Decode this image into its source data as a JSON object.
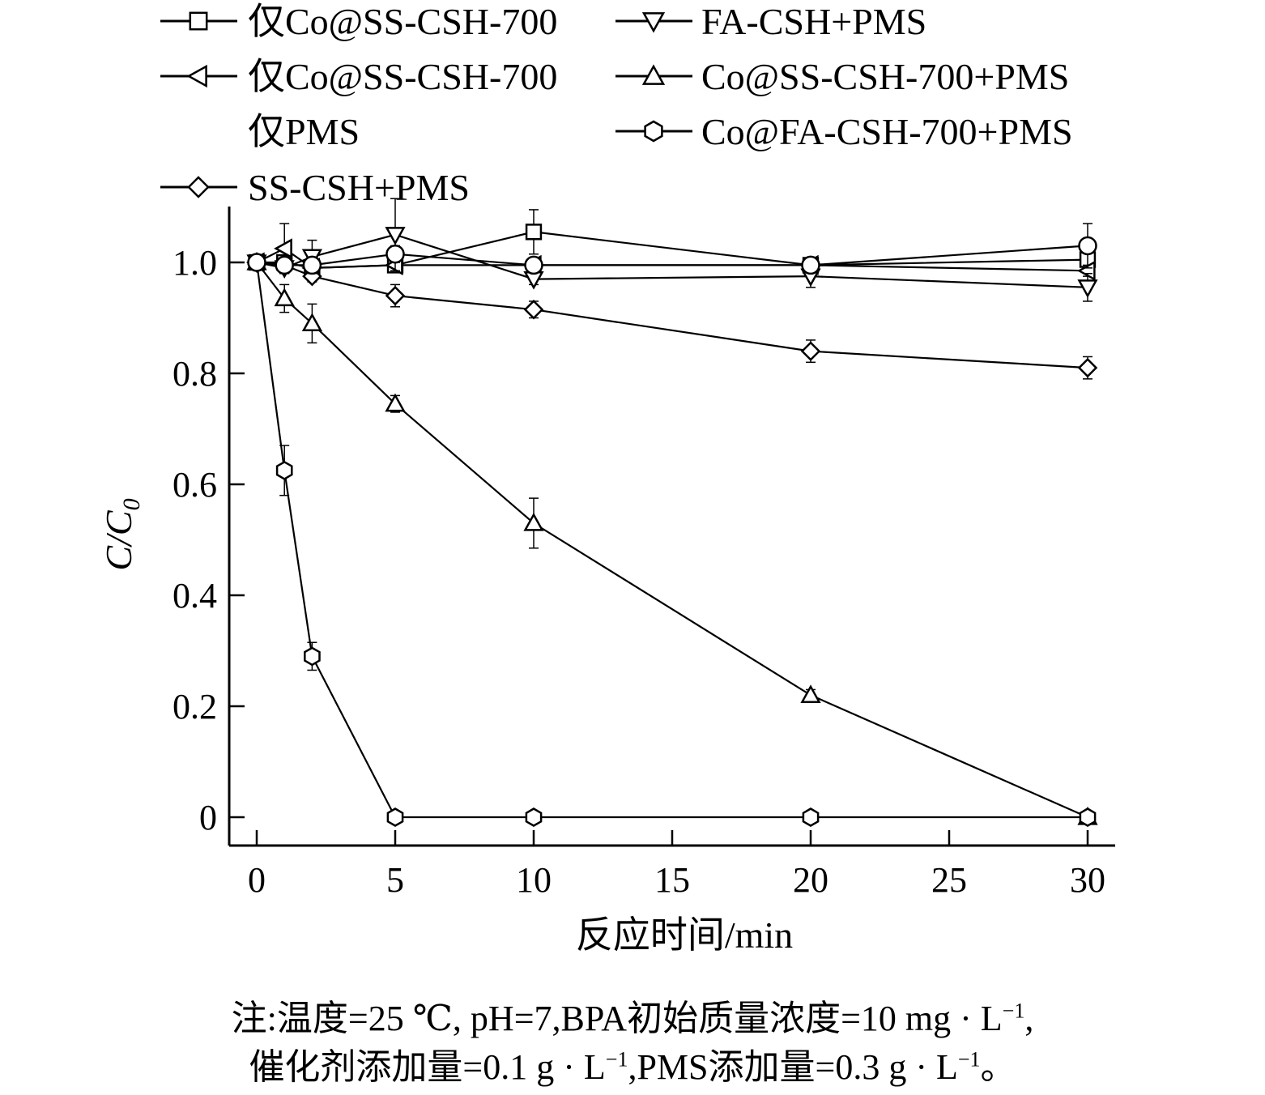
{
  "chart_data": {
    "type": "line",
    "xlabel": "反应时间/min",
    "ylabel_main": "C/C",
    "ylabel_sub": "0",
    "xlim": [
      0,
      30
    ],
    "ylim": [
      0,
      1.0
    ],
    "x_ticks": [
      0,
      5,
      10,
      15,
      20,
      25,
      30
    ],
    "x_tick_labels": [
      "0",
      "5",
      "10",
      "15",
      "20",
      "25",
      "30"
    ],
    "y_ticks": [
      0,
      0.2,
      0.4,
      0.6,
      0.8,
      1.0
    ],
    "y_tick_labels": [
      "0",
      "0.2",
      "0.4",
      "0.6",
      "0.8",
      "1.0"
    ],
    "grid": false,
    "legend_position": "top",
    "x": [
      0,
      1,
      2,
      5,
      10,
      20,
      30
    ],
    "series": [
      {
        "name": "仅Co@SS-CSH-700",
        "marker": "square",
        "values": [
          1.0,
          1.0,
          0.99,
          0.995,
          1.055,
          0.995,
          1.005
        ],
        "errors": [
          0,
          0.01,
          0.01,
          0.01,
          0.04,
          0.01,
          0.01
        ]
      },
      {
        "name": "仅Co@SS-CSH-700",
        "marker": "triangle-left",
        "values": [
          1.0,
          1.025,
          0.99,
          0.995,
          0.995,
          0.995,
          0.985
        ],
        "errors": [
          0,
          0.045,
          0.015,
          0.01,
          0.01,
          0.01,
          0.01
        ]
      },
      {
        "name": "SS-CSH+PMS",
        "marker": "diamond",
        "values": [
          1.0,
          0.995,
          0.975,
          0.94,
          0.915,
          0.84,
          0.81
        ],
        "errors": [
          0,
          0.01,
          0.01,
          0.02,
          0.015,
          0.02,
          0.02
        ]
      },
      {
        "name": "FA-CSH+PMS",
        "marker": "triangle-down",
        "values": [
          1.0,
          0.99,
          1.01,
          1.05,
          0.97,
          0.975,
          0.955
        ],
        "errors": [
          0,
          0.01,
          0.03,
          0.065,
          0.01,
          0.02,
          0.025
        ]
      },
      {
        "name": "Co@SS-CSH-700+PMS",
        "marker": "triangle-up",
        "values": [
          1.0,
          0.935,
          0.89,
          0.745,
          0.53,
          0.22,
          0.0
        ],
        "errors": [
          0,
          0.025,
          0.035,
          0.015,
          0.045,
          0.01,
          0.005
        ]
      },
      {
        "name": "Co@FA-CSH-700+PMS",
        "marker": "hexagon",
        "values": [
          1.0,
          0.625,
          0.29,
          0.0,
          0.0,
          0.0,
          0.0
        ],
        "errors": [
          0,
          0.045,
          0.025,
          0.005,
          0.005,
          0.005,
          0.005
        ]
      },
      {
        "name": "仅PMS",
        "marker": "circle",
        "values": [
          1.0,
          0.995,
          0.995,
          1.015,
          0.995,
          0.995,
          1.03
        ],
        "errors": [
          0,
          0.01,
          0.01,
          0.015,
          0.01,
          0.01,
          0.04
        ]
      }
    ],
    "legend": [
      {
        "series": 0,
        "text": "仅Co@SS-CSH-700"
      },
      {
        "series": 1,
        "text": "仅Co@SS-CSH-700"
      },
      {
        "series": -1,
        "text": "仅PMS"
      },
      {
        "series": 2,
        "text": "SS-CSH+PMS"
      },
      {
        "series": 3,
        "text": "FA-CSH+PMS"
      },
      {
        "series": 4,
        "text": "Co@SS-CSH-700+PMS"
      },
      {
        "series": 5,
        "text": "Co@FA-CSH-700+PMS"
      }
    ]
  },
  "note": {
    "line1_prefix": "注:温度=25 ℃, pH=7,BPA初始质量浓度=10 mg · L",
    "line1_sup": "−1",
    "line1_suffix": ",",
    "line2_part1": "催化剂添加量=0.1 g · L",
    "line2_sup1": "−1",
    "line2_part2": ",PMS添加量=0.3 g · L",
    "line2_sup2": "−1",
    "line2_suffix": "。"
  }
}
